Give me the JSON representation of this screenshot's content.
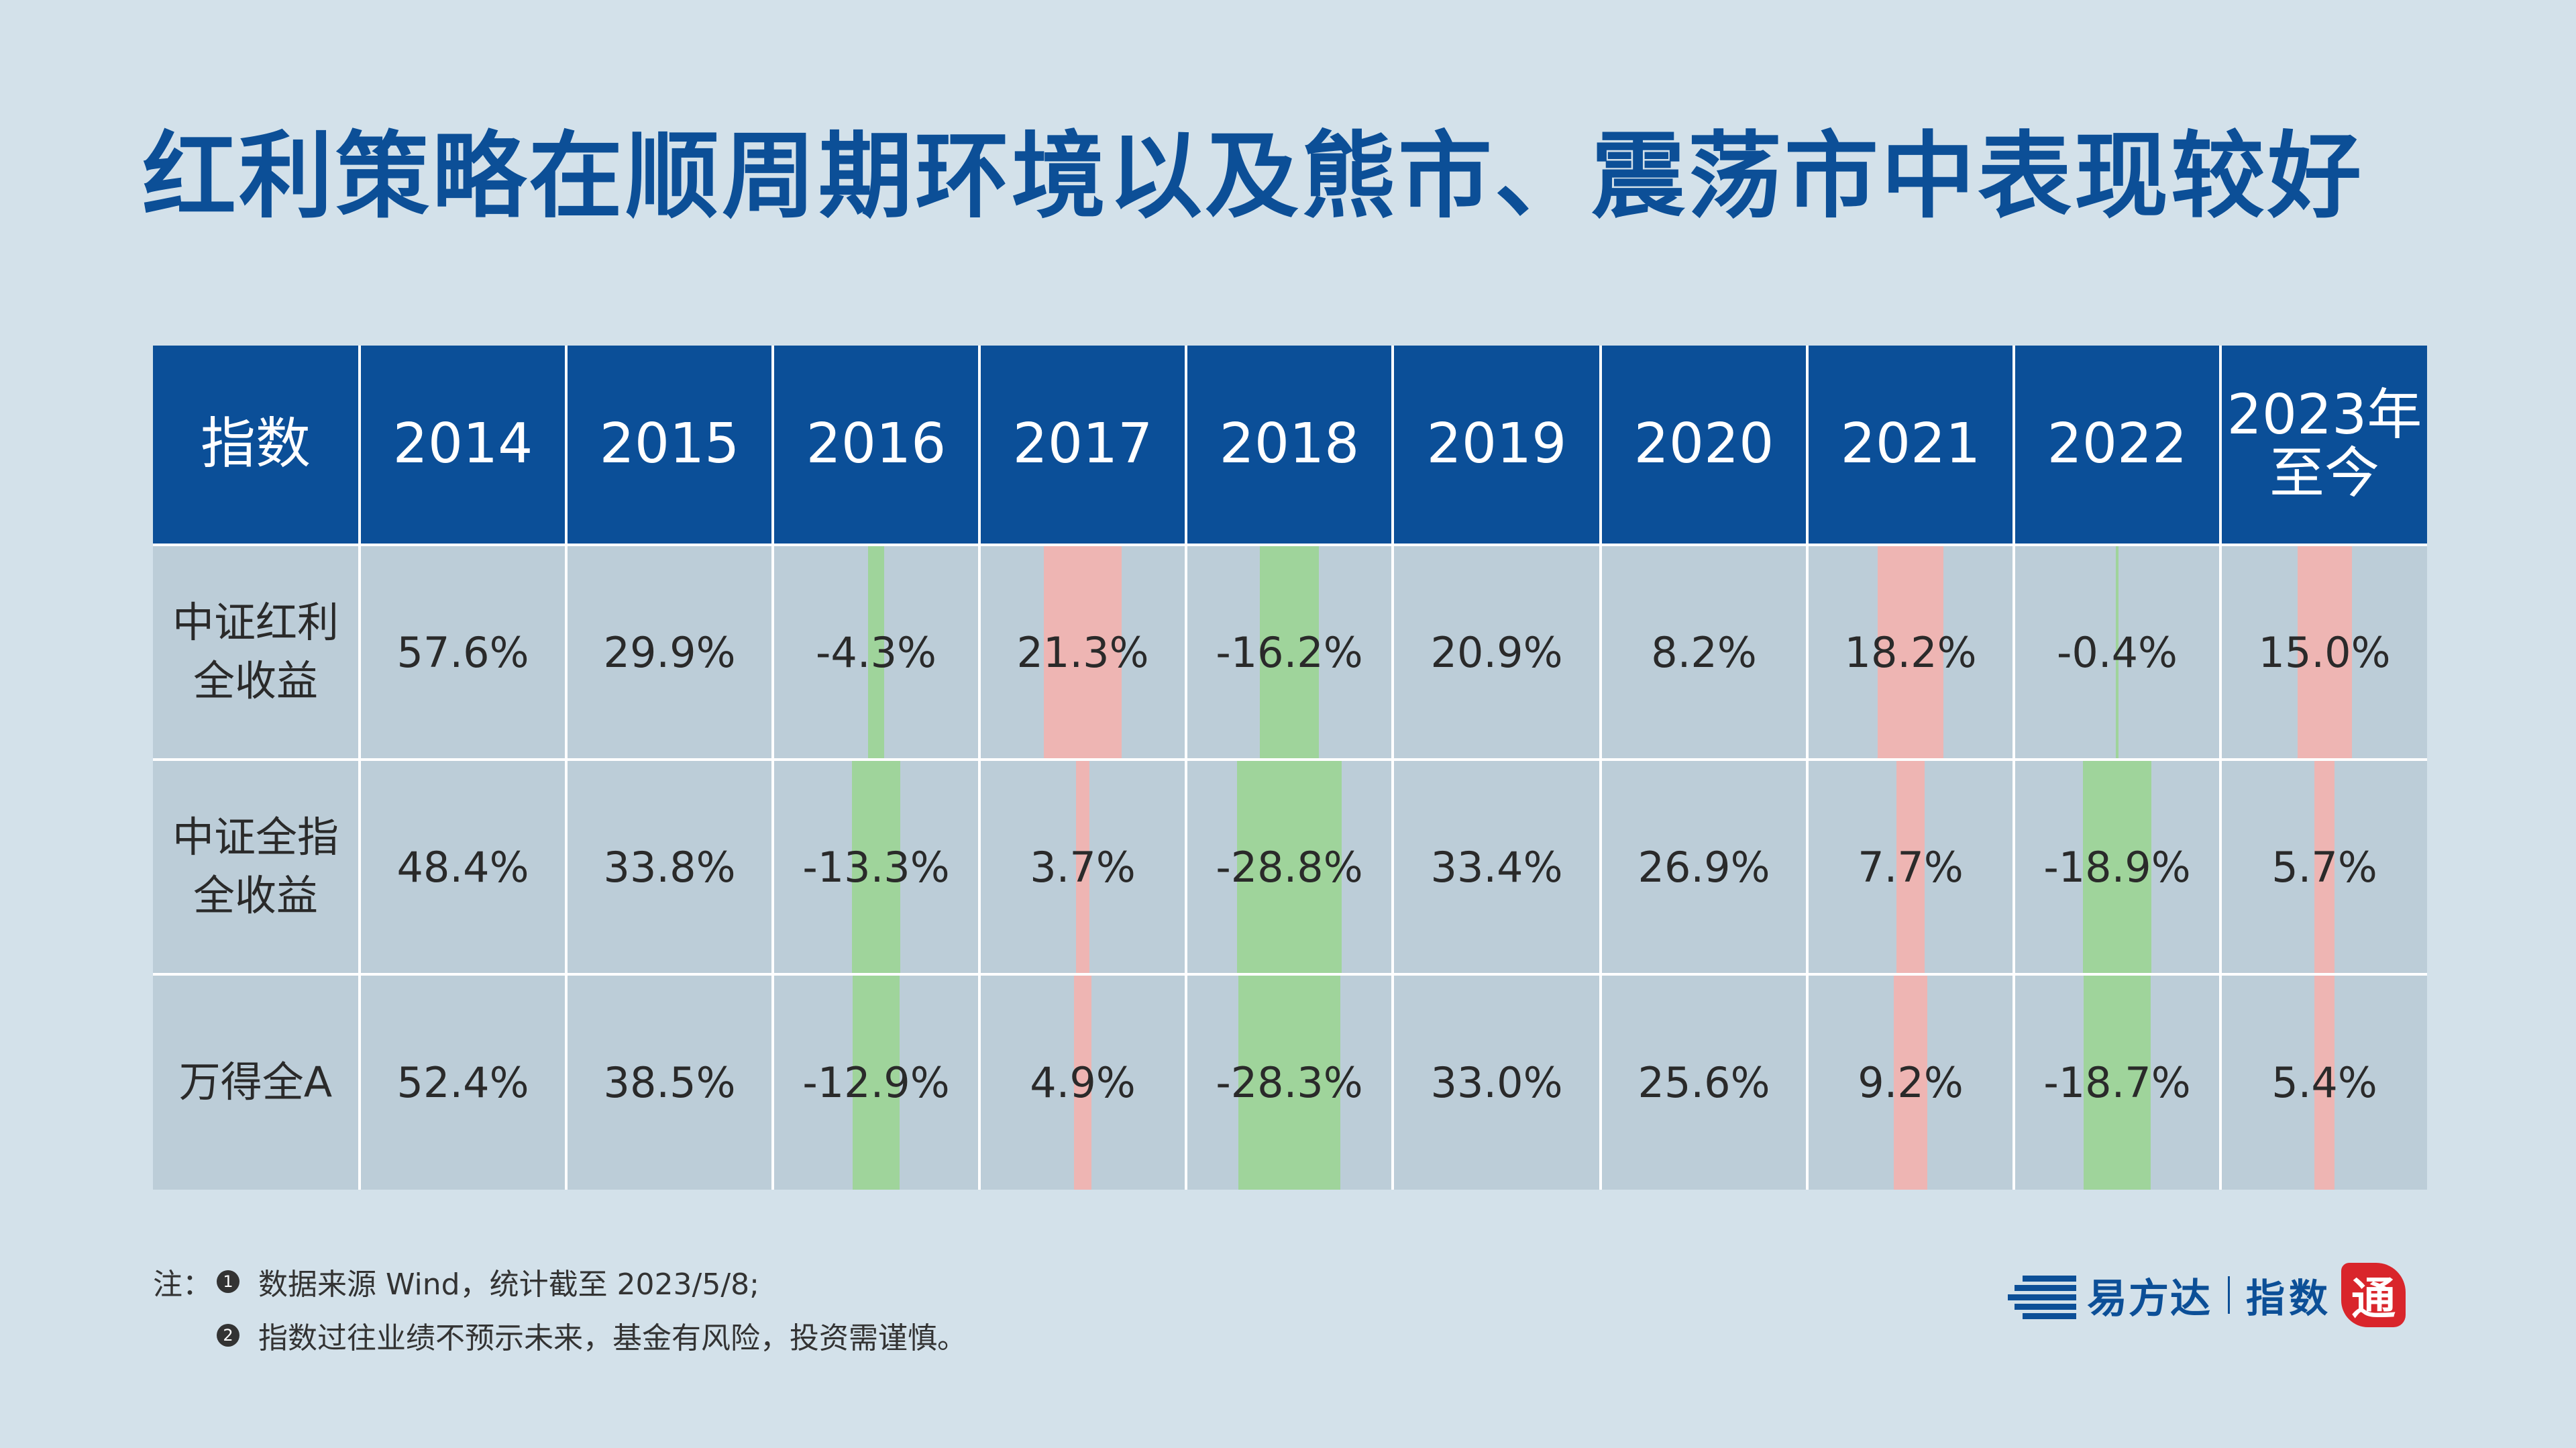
{
  "title": "红利策略在顺周期环境以及熊市、震荡市中表现较好",
  "table": {
    "headers": [
      "指数",
      "2014",
      "2015",
      "2016",
      "2017",
      "2018",
      "2019",
      "2020",
      "2021",
      "2022",
      "2023年\n至今"
    ],
    "rows": [
      {
        "name": "中证红利\n全收益",
        "values": [
          "57.6%",
          "29.9%",
          "-4.3%",
          "21.3%",
          "-16.2%",
          "20.9%",
          "8.2%",
          "18.2%",
          "-0.4%",
          "15.0%"
        ],
        "numbers": [
          57.6,
          29.9,
          -4.3,
          21.3,
          -16.2,
          20.9,
          8.2,
          18.2,
          -0.4,
          15.0
        ]
      },
      {
        "name": "中证全指\n全收益",
        "values": [
          "48.4%",
          "33.8%",
          "-13.3%",
          "3.7%",
          "-28.8%",
          "33.4%",
          "26.9%",
          "7.7%",
          "-18.9%",
          "5.7%"
        ],
        "numbers": [
          48.4,
          33.8,
          -13.3,
          3.7,
          -28.8,
          33.4,
          26.9,
          7.7,
          -18.9,
          5.7
        ]
      },
      {
        "name": "万得全A",
        "values": [
          "52.4%",
          "38.5%",
          "-12.9%",
          "4.9%",
          "-28.3%",
          "33.0%",
          "25.6%",
          "9.2%",
          "-18.7%",
          "5.4%"
        ],
        "numbers": [
          52.4,
          38.5,
          -12.9,
          4.9,
          -28.3,
          33.0,
          25.6,
          9.2,
          -18.7,
          5.4
        ]
      }
    ],
    "bar_columns": [
      "2016",
      "2017",
      "2018",
      "2021",
      "2022",
      "2023年\n至今"
    ],
    "colors": {
      "header_bg": "#0b4f98",
      "cell_bg": "#bccdd8",
      "negative_bar": "#9fd49b",
      "positive_bar": "#eeb5b3"
    }
  },
  "notes": {
    "prefix": "注：",
    "items": [
      {
        "bullet": "1",
        "text": "数据来源 Wind，统计截至 2023/5/8;"
      },
      {
        "bullet": "2",
        "text": "指数过往业绩不预示未来，基金有风险，投资需谨慎。"
      }
    ]
  },
  "logo": {
    "brand": "易方达",
    "sub": "指数",
    "seal": "通",
    "icon": "efund-stripes-icon"
  }
}
